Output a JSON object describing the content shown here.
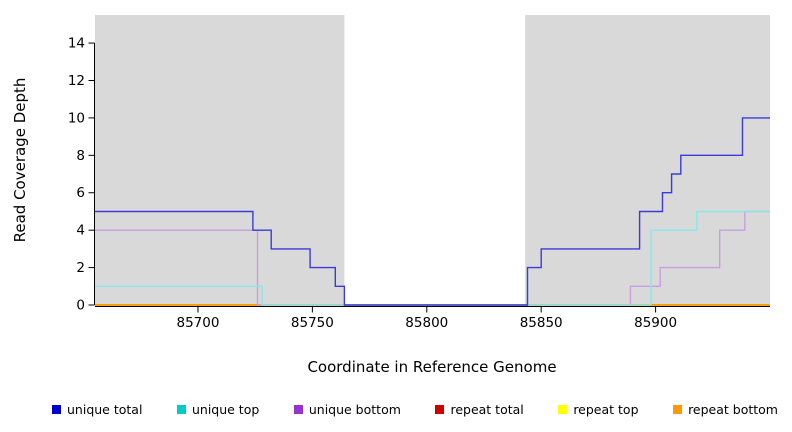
{
  "chart_data": {
    "type": "line",
    "subtype": "step",
    "title": "",
    "xlabel": "Coordinate in Reference Genome",
    "ylabel": "Read Coverage Depth",
    "xlim": [
      85655,
      85950
    ],
    "ylim": [
      0,
      15.5
    ],
    "xticks": [
      85700,
      85750,
      85800,
      85850,
      85900
    ],
    "yticks": [
      0,
      2,
      4,
      6,
      8,
      10,
      12,
      14
    ],
    "grid": false,
    "plot_bg": "#d9d9d9",
    "page_bg": "#ffffff",
    "highlight_region": {
      "x0": 85764,
      "x1": 85843,
      "color": "#ffffff"
    },
    "series": [
      {
        "name": "repeat total",
        "line_color": "#d40000",
        "points": [
          [
            85655,
            0
          ],
          [
            85950,
            0
          ]
        ]
      },
      {
        "name": "repeat top",
        "line_color": "#f5f500",
        "points": [
          [
            85655,
            0
          ],
          [
            85950,
            0
          ]
        ]
      },
      {
        "name": "repeat bottom",
        "line_color": "#ff9500",
        "points": [
          [
            85655,
            0
          ],
          [
            85950,
            0
          ]
        ]
      },
      {
        "name": "unique bottom",
        "line_color": "#c79fe0",
        "points": [
          [
            85655,
            4
          ],
          [
            85726,
            0
          ],
          [
            85889,
            1
          ],
          [
            85902,
            2
          ],
          [
            85928,
            4
          ],
          [
            85939,
            5
          ],
          [
            85950,
            5
          ]
        ]
      },
      {
        "name": "unique top",
        "line_color": "#8ae8e8",
        "points": [
          [
            85655,
            1
          ],
          [
            85728,
            0
          ],
          [
            85898,
            4
          ],
          [
            85918,
            5
          ],
          [
            85950,
            5
          ]
        ]
      },
      {
        "name": "unique total",
        "line_color": "#3a3ad9",
        "points": [
          [
            85655,
            5
          ],
          [
            85724,
            4
          ],
          [
            85732,
            3
          ],
          [
            85749,
            2
          ],
          [
            85760,
            1
          ],
          [
            85764,
            0
          ],
          [
            85844,
            2
          ],
          [
            85850,
            3
          ],
          [
            85893,
            5
          ],
          [
            85903,
            6
          ],
          [
            85907,
            7
          ],
          [
            85911,
            8
          ],
          [
            85938,
            10
          ],
          [
            85950,
            10
          ]
        ]
      }
    ],
    "legend_position": "bottom",
    "legend": [
      {
        "label": "unique total",
        "color": "#0000cd"
      },
      {
        "label": "unique top",
        "color": "#00cccc"
      },
      {
        "label": "unique bottom",
        "color": "#9933cc"
      },
      {
        "label": "repeat total",
        "color": "#cc0000"
      },
      {
        "label": "repeat top",
        "color": "#ffff00"
      },
      {
        "label": "repeat bottom",
        "color": "#ff9900"
      }
    ]
  }
}
